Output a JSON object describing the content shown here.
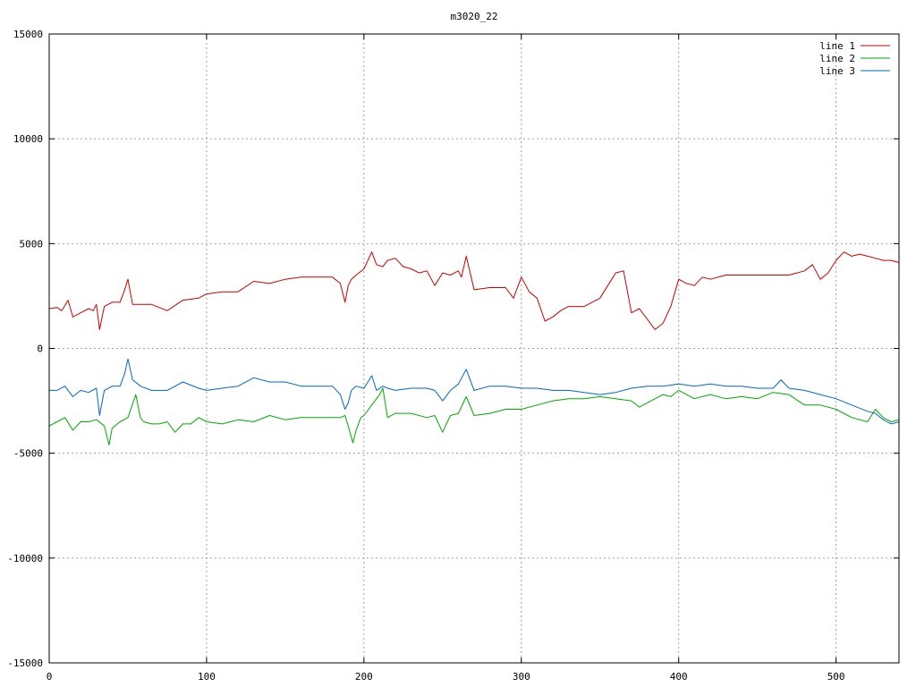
{
  "chart_data": {
    "type": "line",
    "title": "m3020_22",
    "xlabel": "",
    "ylabel": "",
    "xlim": [
      0,
      540
    ],
    "ylim": [
      -15000,
      15000
    ],
    "x_ticks": [
      0,
      100,
      200,
      300,
      400,
      500
    ],
    "y_ticks": [
      -15000,
      -10000,
      -5000,
      0,
      5000,
      10000,
      15000
    ],
    "grid": true,
    "legend_position": "top-right",
    "series": [
      {
        "name": "line 1",
        "color": "#cc0000",
        "x": [
          0,
          5,
          8,
          12,
          15,
          20,
          25,
          28,
          30,
          32,
          35,
          40,
          45,
          48,
          50,
          53,
          58,
          65,
          75,
          85,
          95,
          100,
          110,
          120,
          130,
          140,
          150,
          160,
          170,
          180,
          185,
          188,
          190,
          192,
          195,
          200,
          205,
          208,
          212,
          215,
          220,
          225,
          230,
          235,
          240,
          245,
          250,
          255,
          260,
          262,
          265,
          270,
          280,
          290,
          295,
          300,
          305,
          310,
          315,
          320,
          325,
          330,
          340,
          350,
          355,
          360,
          365,
          370,
          375,
          380,
          385,
          390,
          395,
          400,
          405,
          410,
          415,
          420,
          430,
          440,
          450,
          460,
          470,
          480,
          485,
          490,
          495,
          500,
          505,
          510,
          515,
          520,
          525,
          530,
          535,
          540
        ],
        "y": [
          1900,
          1950,
          1800,
          2300,
          1500,
          1700,
          1900,
          1800,
          2100,
          900,
          2000,
          2200,
          2200,
          2800,
          3300,
          2100,
          2100,
          2100,
          1800,
          2300,
          2400,
          2600,
          2700,
          2700,
          3200,
          3100,
          3300,
          3400,
          3400,
          3400,
          3100,
          2200,
          3000,
          3300,
          3500,
          3800,
          4600,
          4000,
          3900,
          4200,
          4300,
          3900,
          3800,
          3600,
          3700,
          3000,
          3600,
          3500,
          3700,
          3400,
          4400,
          2800,
          2900,
          2900,
          2400,
          3400,
          2700,
          2400,
          1300,
          1500,
          1800,
          2000,
          2000,
          2400,
          3000,
          3600,
          3700,
          1700,
          1900,
          1400,
          900,
          1200,
          2000,
          3300,
          3100,
          3000,
          3400,
          3300,
          3500,
          3500,
          3500,
          3500,
          3500,
          3700,
          4000,
          3300,
          3600,
          4200,
          4600,
          4400,
          4500,
          4400,
          4300,
          4200,
          4200,
          4100
        ]
      },
      {
        "name": "line 2",
        "color": "#00aa00",
        "x": [
          0,
          5,
          10,
          15,
          20,
          25,
          30,
          35,
          38,
          40,
          45,
          50,
          55,
          58,
          60,
          65,
          70,
          75,
          80,
          85,
          90,
          95,
          100,
          110,
          120,
          130,
          140,
          150,
          160,
          170,
          180,
          185,
          188,
          190,
          193,
          195,
          198,
          200,
          205,
          210,
          212,
          215,
          220,
          230,
          240,
          245,
          250,
          253,
          255,
          260,
          265,
          270,
          280,
          290,
          300,
          310,
          320,
          330,
          340,
          350,
          360,
          370,
          375,
          380,
          385,
          390,
          395,
          400,
          410,
          420,
          430,
          440,
          450,
          460,
          470,
          480,
          490,
          500,
          510,
          520,
          525,
          530,
          535,
          540
        ],
        "y": [
          -3700,
          -3500,
          -3300,
          -3900,
          -3500,
          -3500,
          -3400,
          -3700,
          -4600,
          -3800,
          -3500,
          -3300,
          -2200,
          -3300,
          -3500,
          -3600,
          -3600,
          -3500,
          -4000,
          -3600,
          -3600,
          -3300,
          -3500,
          -3600,
          -3400,
          -3500,
          -3200,
          -3400,
          -3300,
          -3300,
          -3300,
          -3300,
          -3200,
          -3700,
          -4500,
          -3900,
          -3300,
          -3200,
          -2700,
          -2200,
          -1900,
          -3300,
          -3100,
          -3100,
          -3300,
          -3200,
          -4000,
          -3500,
          -3200,
          -3100,
          -2300,
          -3200,
          -3100,
          -2900,
          -2900,
          -2700,
          -2500,
          -2400,
          -2400,
          -2300,
          -2400,
          -2500,
          -2800,
          -2600,
          -2400,
          -2200,
          -2300,
          -2000,
          -2400,
          -2200,
          -2400,
          -2300,
          -2400,
          -2100,
          -2200,
          -2700,
          -2700,
          -2900,
          -3300,
          -3500,
          -2900,
          -3300,
          -3500,
          -3400
        ]
      },
      {
        "name": "line 3",
        "color": "#0066cc",
        "x": [
          0,
          5,
          10,
          15,
          20,
          25,
          30,
          32,
          35,
          40,
          45,
          48,
          50,
          53,
          58,
          65,
          75,
          85,
          95,
          100,
          110,
          120,
          130,
          140,
          150,
          160,
          170,
          180,
          185,
          188,
          190,
          192,
          195,
          200,
          205,
          208,
          212,
          215,
          220,
          230,
          240,
          245,
          250,
          253,
          255,
          260,
          265,
          270,
          280,
          290,
          300,
          310,
          320,
          330,
          340,
          350,
          360,
          370,
          380,
          390,
          400,
          410,
          420,
          430,
          440,
          450,
          460,
          465,
          470,
          480,
          490,
          500,
          510,
          520,
          525,
          530,
          535,
          540
        ],
        "y": [
          -2000,
          -2000,
          -1800,
          -2300,
          -2000,
          -2100,
          -1900,
          -3200,
          -2000,
          -1800,
          -1800,
          -1200,
          -500,
          -1500,
          -1800,
          -2000,
          -2000,
          -1600,
          -1900,
          -2000,
          -1900,
          -1800,
          -1400,
          -1600,
          -1600,
          -1800,
          -1800,
          -1800,
          -2200,
          -2900,
          -2600,
          -2000,
          -1800,
          -1900,
          -1300,
          -2000,
          -1800,
          -1900,
          -2000,
          -1900,
          -1900,
          -2000,
          -2500,
          -2200,
          -2000,
          -1700,
          -1000,
          -2000,
          -1800,
          -1800,
          -1900,
          -1900,
          -2000,
          -2000,
          -2100,
          -2200,
          -2100,
          -1900,
          -1800,
          -1800,
          -1700,
          -1800,
          -1700,
          -1800,
          -1800,
          -1900,
          -1900,
          -1500,
          -1900,
          -2000,
          -2200,
          -2400,
          -2700,
          -3000,
          -3100,
          -3400,
          -3600,
          -3500
        ]
      }
    ]
  }
}
